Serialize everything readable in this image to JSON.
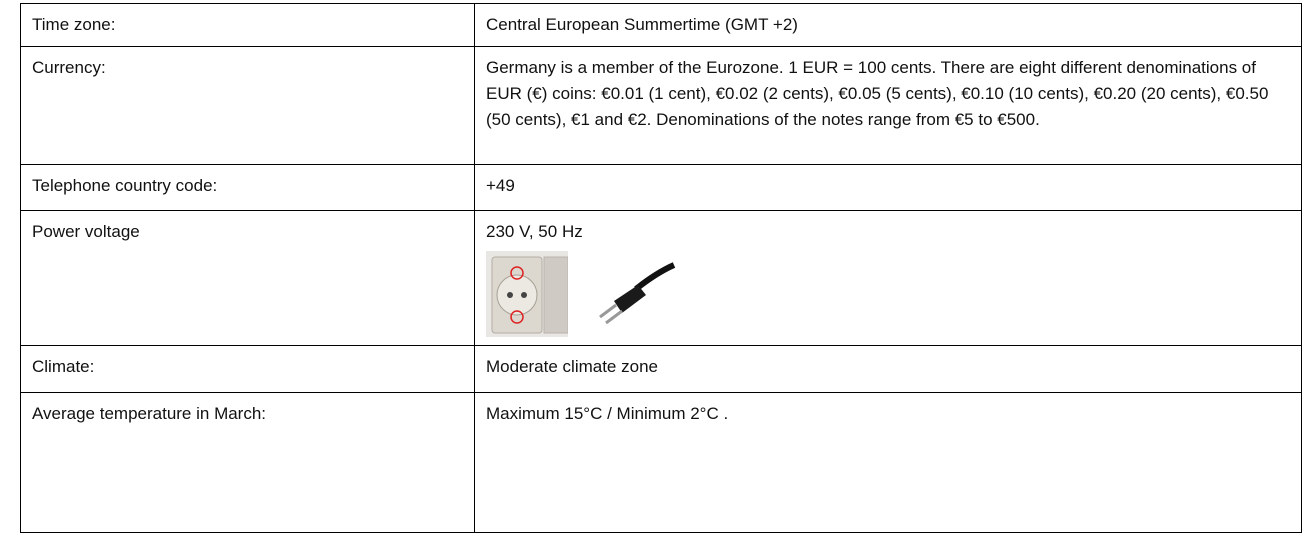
{
  "table": {
    "rows": [
      [
        "Time zone:",
        "Central European Summertime (GMT +2)"
      ],
      [
        "Currency:",
        "Germany is a member of the Eurozone. 1 EUR = 100 cents. There are eight different denominations of EUR (€) coins: €0.01 (1 cent), €0.02 (2 cents), €0.05 (5 cents), €0.10 (10 cents), €0.20 (20 cents), €0.50 (50 cents), €1 and €2. Denominations of the notes range from €5 to €500."
      ],
      [
        "Telephone country code:",
        "+49"
      ],
      [
        "Power voltage",
        "230 V, 50 Hz"
      ],
      [
        "Climate:",
        "Moderate climate zone"
      ],
      [
        "Average temperature in March:",
        "Maximum 15°C / Minimum 2°C ."
      ]
    ]
  }
}
